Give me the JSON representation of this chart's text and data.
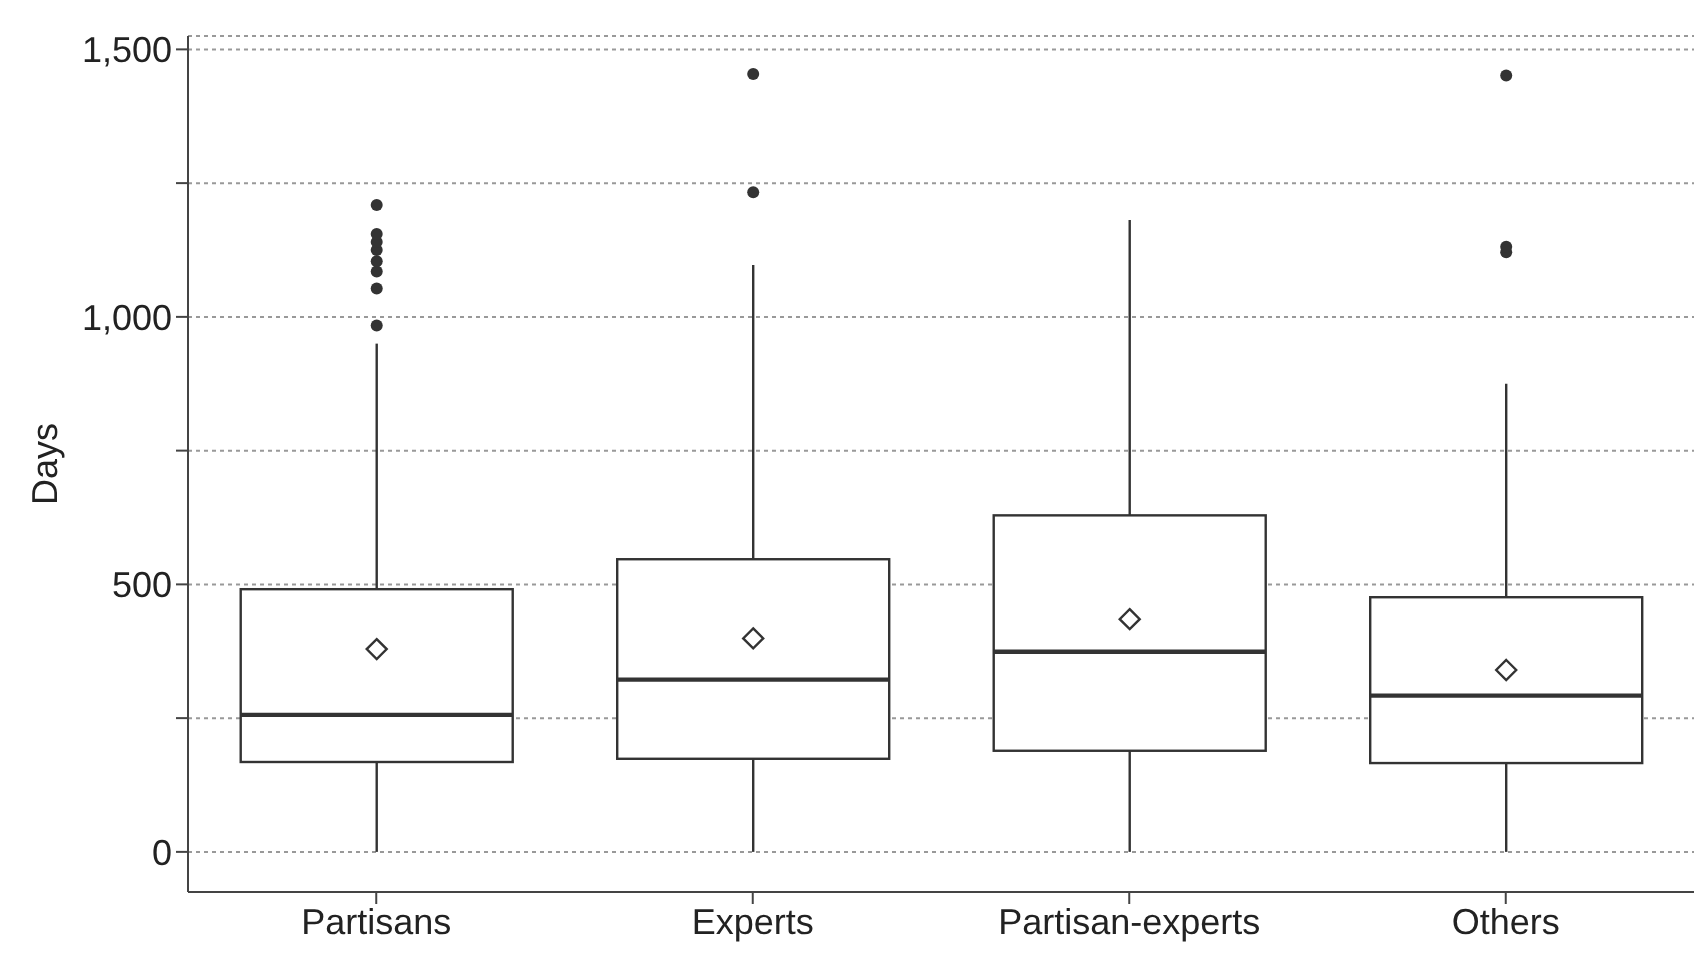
{
  "chart_data": {
    "type": "box",
    "ylabel": "Days",
    "categories": [
      "Partisans",
      "Experts",
      "Partisan-experts",
      "Others"
    ],
    "boxes": [
      {
        "low": 0,
        "q1": 168,
        "median": 256,
        "q3": 491,
        "high": 950,
        "mean": 379,
        "outliers": [
          984,
          1053,
          1085,
          1104,
          1125,
          1140,
          1155,
          1209
        ]
      },
      {
        "low": 0,
        "q1": 174,
        "median": 322,
        "q3": 547,
        "high": 1097,
        "mean": 399,
        "outliers": [
          1233,
          1454
        ]
      },
      {
        "low": 0,
        "q1": 189,
        "median": 374,
        "q3": 629,
        "high": 1181,
        "mean": 435
      },
      {
        "low": 0,
        "q1": 166,
        "median": 292,
        "q3": 476,
        "high": 875,
        "mean": 340,
        "outliers": [
          1121,
          1131,
          1451
        ]
      }
    ],
    "color": "#333333",
    "ylim": [
      -75,
      1525
    ],
    "yticks": [
      0,
      {
        "value": 250,
        "label": null
      },
      500,
      {
        "value": 750,
        "label": null
      },
      {
        "value": 1000,
        "label": "1,000"
      },
      {
        "value": 1250,
        "label": null
      },
      {
        "value": 1500,
        "label": "1,500"
      }
    ],
    "grid": "y",
    "marker": "circle"
  }
}
